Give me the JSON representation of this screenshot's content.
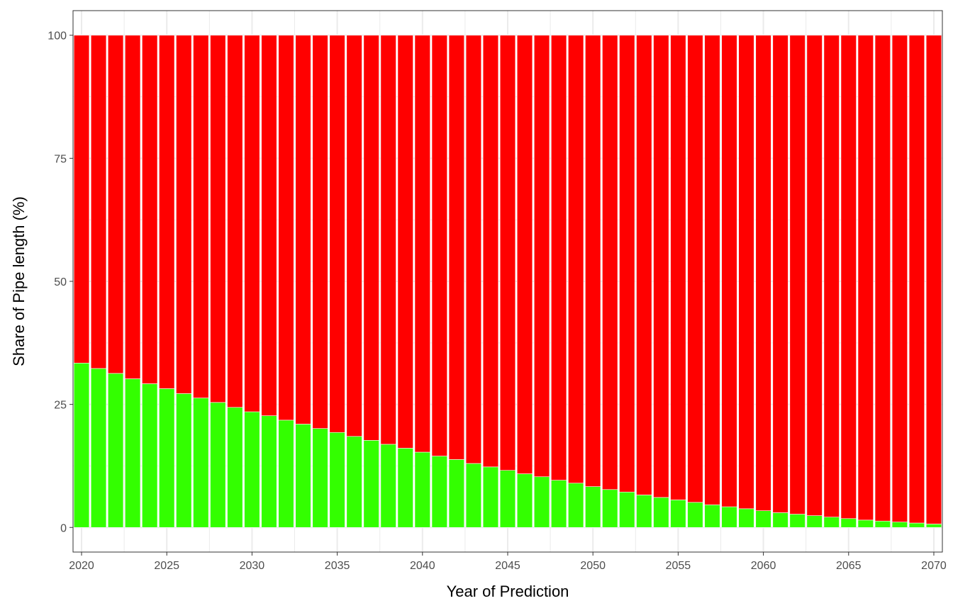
{
  "chart_data": {
    "type": "bar",
    "stacked": true,
    "percent_scale": true,
    "title": "",
    "xlabel": "Year of Prediction",
    "ylabel": "Share of Pipe length (%)",
    "xlim": [
      2019.5,
      2070.5
    ],
    "ylim": [
      -5,
      105
    ],
    "x_ticks": [
      2020,
      2025,
      2030,
      2035,
      2040,
      2045,
      2050,
      2055,
      2060,
      2065,
      2070
    ],
    "y_ticks": [
      0,
      25,
      50,
      75,
      100
    ],
    "grid": true,
    "legend": "none",
    "categories": [
      2020,
      2021,
      2022,
      2023,
      2024,
      2025,
      2026,
      2027,
      2028,
      2029,
      2030,
      2031,
      2032,
      2033,
      2034,
      2035,
      2036,
      2037,
      2038,
      2039,
      2040,
      2041,
      2042,
      2043,
      2044,
      2045,
      2046,
      2047,
      2048,
      2049,
      2050,
      2051,
      2052,
      2053,
      2054,
      2055,
      2056,
      2057,
      2058,
      2059,
      2060,
      2061,
      2062,
      2063,
      2064,
      2065,
      2066,
      2067,
      2068,
      2069,
      2070
    ],
    "series": [
      {
        "color": "#33ff00",
        "values": [
          33.4,
          32.3,
          31.3,
          30.2,
          29.2,
          28.2,
          27.2,
          26.3,
          25.4,
          24.4,
          23.5,
          22.7,
          21.8,
          21.0,
          20.1,
          19.3,
          18.5,
          17.7,
          16.9,
          16.1,
          15.3,
          14.5,
          13.8,
          13.0,
          12.3,
          11.6,
          10.9,
          10.3,
          9.6,
          9.0,
          8.3,
          7.7,
          7.2,
          6.6,
          6.1,
          5.6,
          5.1,
          4.6,
          4.2,
          3.8,
          3.4,
          3.0,
          2.7,
          2.4,
          2.1,
          1.8,
          1.5,
          1.3,
          1.1,
          0.9,
          0.7
        ]
      },
      {
        "color": "#ff0000",
        "values": [
          66.6,
          67.7,
          68.7,
          69.8,
          70.8,
          71.8,
          72.8,
          73.7,
          74.6,
          75.6,
          76.5,
          77.3,
          78.2,
          79.0,
          79.9,
          80.7,
          81.5,
          82.3,
          83.1,
          83.9,
          84.7,
          85.5,
          86.2,
          87.0,
          87.7,
          88.4,
          89.1,
          89.7,
          90.4,
          91.0,
          91.7,
          92.3,
          92.8,
          93.4,
          93.9,
          94.4,
          94.9,
          95.4,
          95.8,
          96.2,
          96.6,
          97.0,
          97.3,
          97.6,
          97.9,
          98.2,
          98.5,
          98.7,
          98.9,
          99.1,
          99.3
        ]
      }
    ]
  }
}
